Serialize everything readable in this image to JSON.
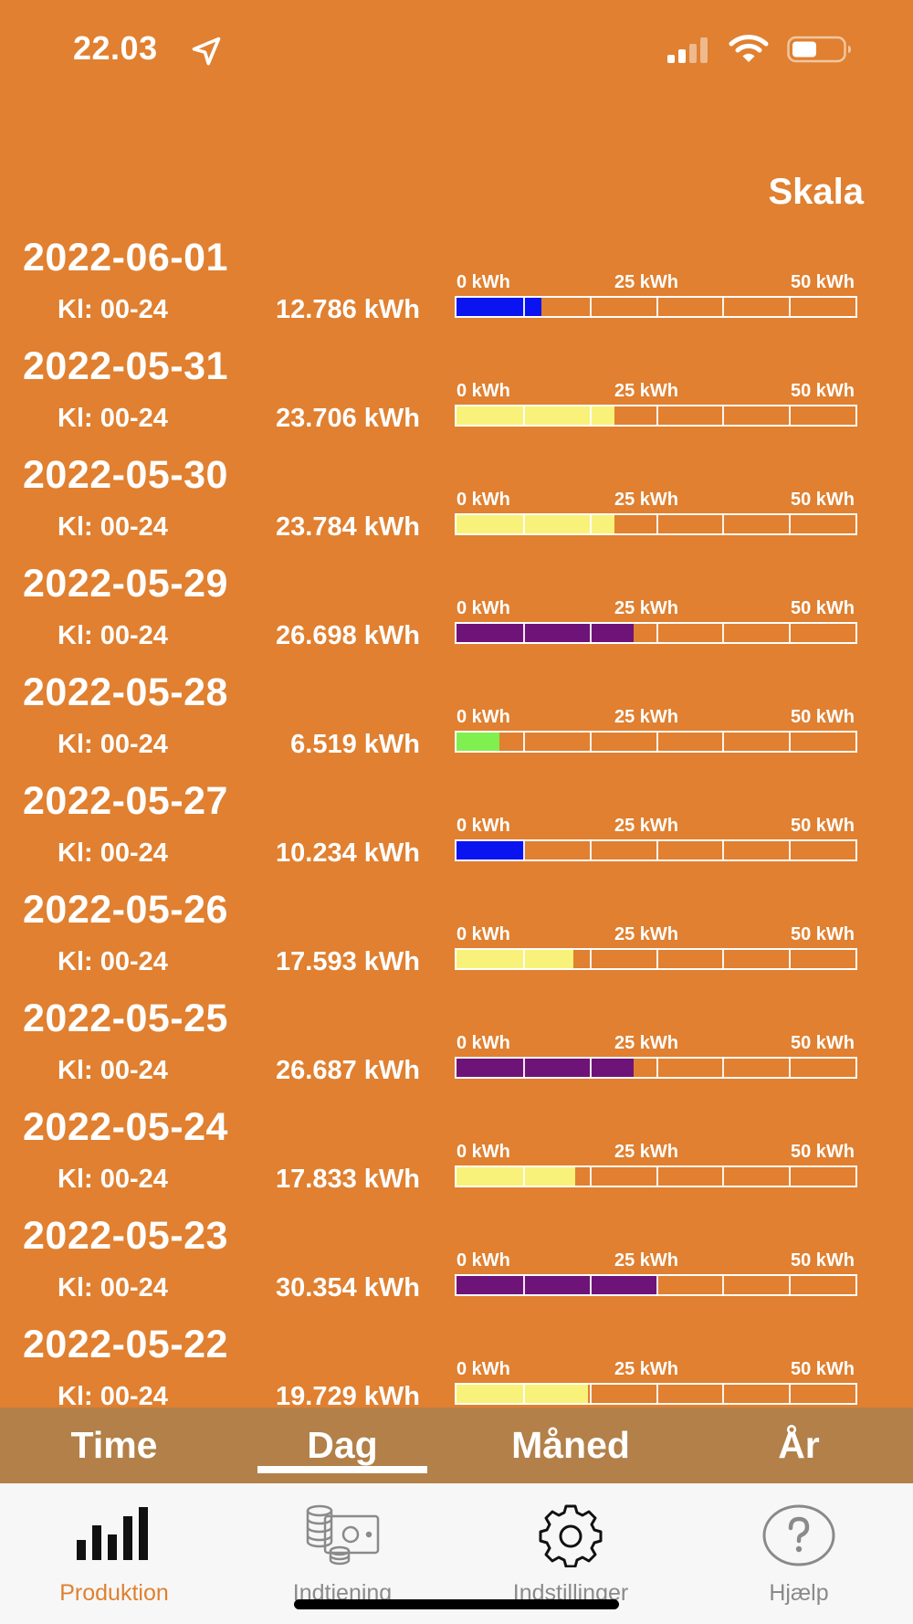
{
  "status_bar": {
    "time": "22.03",
    "icons": [
      "location-arrow-icon",
      "cellular-signal-icon",
      "wifi-icon",
      "battery-icon"
    ]
  },
  "scale_label": "Skala",
  "scale_ticks": [
    "0 kWh",
    "25 kWh",
    "50 kWh"
  ],
  "scale_max_kwh": 60,
  "colors": {
    "background": "#E08030",
    "blue": "#0A14F0",
    "yellow": "#F8F27A",
    "purple": "#6E1478",
    "green": "#80F050",
    "active_tab": "#E08030"
  },
  "days": [
    {
      "date": "2022-06-01",
      "hours": "Kl: 00-24",
      "energy": "12.786 kWh",
      "kwh": 12.786,
      "color": "#0A14F0"
    },
    {
      "date": "2022-05-31",
      "hours": "Kl: 00-24",
      "energy": "23.706 kWh",
      "kwh": 23.706,
      "color": "#F8F27A"
    },
    {
      "date": "2022-05-30",
      "hours": "Kl: 00-24",
      "energy": "23.784 kWh",
      "kwh": 23.784,
      "color": "#F8F27A"
    },
    {
      "date": "2022-05-29",
      "hours": "Kl: 00-24",
      "energy": "26.698 kWh",
      "kwh": 26.698,
      "color": "#6E1478"
    },
    {
      "date": "2022-05-28",
      "hours": "Kl: 00-24",
      "energy": "6.519 kWh",
      "kwh": 6.519,
      "color": "#80F050"
    },
    {
      "date": "2022-05-27",
      "hours": "Kl: 00-24",
      "energy": "10.234 kWh",
      "kwh": 10.234,
      "color": "#0A14F0"
    },
    {
      "date": "2022-05-26",
      "hours": "Kl: 00-24",
      "energy": "17.593 kWh",
      "kwh": 17.593,
      "color": "#F8F27A"
    },
    {
      "date": "2022-05-25",
      "hours": "Kl: 00-24",
      "energy": "26.687 kWh",
      "kwh": 26.687,
      "color": "#6E1478"
    },
    {
      "date": "2022-05-24",
      "hours": "Kl: 00-24",
      "energy": "17.833 kWh",
      "kwh": 17.833,
      "color": "#F8F27A"
    },
    {
      "date": "2022-05-23",
      "hours": "Kl: 00-24",
      "energy": "30.354 kWh",
      "kwh": 30.354,
      "color": "#6E1478"
    },
    {
      "date": "2022-05-22",
      "hours": "Kl: 00-24",
      "energy": "19.729 kWh",
      "kwh": 19.729,
      "color": "#F8F27A"
    }
  ],
  "period_tabs": [
    {
      "label": "Time",
      "active": false
    },
    {
      "label": "Dag",
      "active": true
    },
    {
      "label": "Måned",
      "active": false
    },
    {
      "label": "År",
      "active": false
    }
  ],
  "tabbar": [
    {
      "label": "Produktion",
      "icon": "bar-chart-icon",
      "active": true
    },
    {
      "label": "Indtjening",
      "icon": "coins-money-icon",
      "active": false
    },
    {
      "label": "Indstillinger",
      "icon": "gear-icon",
      "active": false
    },
    {
      "label": "Hjælp",
      "icon": "help-circle-icon",
      "active": false
    }
  ]
}
